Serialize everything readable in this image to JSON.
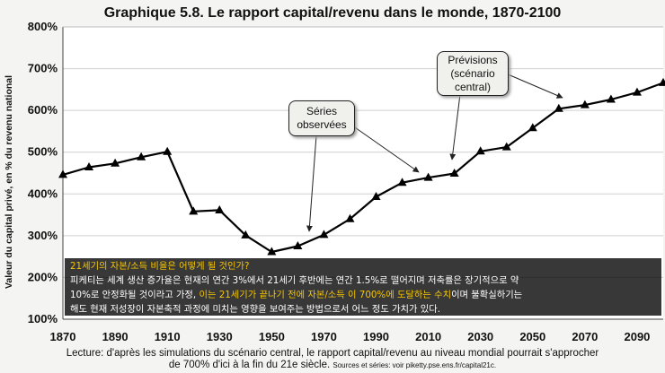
{
  "title": "Graphique 5.8. Le rapport capital/revenu dans le monde, 1870-2100",
  "annotations": {
    "observed": [
      "Séries",
      "observées"
    ],
    "forecast": [
      "Prévisions",
      "(scénario",
      "central)"
    ]
  },
  "overlay": {
    "line1": "21세기의 자본/소득 비율은 어떻게 될 것인가?",
    "line2": "피케티는 세계 생산 증가율은 현재의 연간 3%에서 21세기 후반에는 연간 1.5%로 떨어지며 저축률은 장기적으로 약",
    "line3a": "10%로 안정화될 것이라고 가정, ",
    "line3b": "이는 21세기가 끝나기 전에 자본/소득 이 700%에 도달하는 수치",
    "line3c": "이며 불확실하기는",
    "line4": "해도 현재 저성장이 자본축적 과정에 미치는 영향을 보여주는 방법으로서 어느 정도 가치가 있다."
  },
  "caption": {
    "line1": "Lecture: d'après les simulations du scénario central, le rapport capital/revenu au niveau mondial pourrait s'approcher",
    "line2": "de 700% d'ici à la fin du 21e siècle.",
    "source": "Sources et séries: voir piketty.pse.ens.fr/capital21c."
  },
  "chart_data": {
    "type": "line",
    "title": "Graphique 5.8. Le rapport capital/revenu dans le monde, 1870-2100",
    "xlabel": "",
    "ylabel": "Valeur du capital privé, en % du revenu national",
    "xlim": [
      1870,
      2100
    ],
    "ylim": [
      100,
      800
    ],
    "x_ticks": [
      1870,
      1890,
      1910,
      1930,
      1950,
      1970,
      1990,
      2010,
      2030,
      2050,
      2070,
      2090
    ],
    "y_ticks": [
      "100%",
      "200%",
      "300%",
      "400%",
      "500%",
      "600%",
      "700%",
      "800%"
    ],
    "y_tick_values": [
      100,
      200,
      300,
      400,
      500,
      600,
      700,
      800
    ],
    "grid": true,
    "series": [
      {
        "x": [
          1870,
          1880,
          1890,
          1900,
          1910,
          1920,
          1930,
          1940,
          1950,
          1960,
          1970,
          1980,
          1990,
          2000,
          2010,
          2020,
          2030,
          2040,
          2050,
          2060,
          2070,
          2080,
          2090,
          2100
        ],
        "y": [
          446,
          464,
          473,
          488,
          501,
          358,
          361,
          301,
          261,
          275,
          302,
          340,
          393,
          427,
          439,
          449,
          502,
          512,
          558,
          604,
          613,
          626,
          643,
          666
        ]
      }
    ],
    "marker": "triangle",
    "color": "#000000"
  }
}
